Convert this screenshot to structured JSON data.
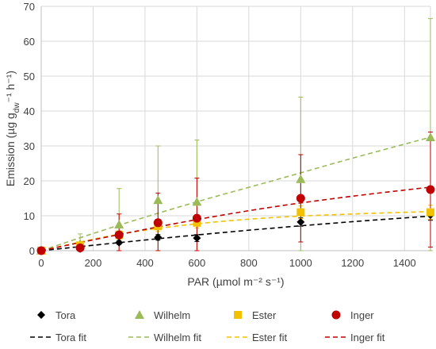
{
  "chart_data": {
    "type": "scatter",
    "xlabel": "PAR (µmol m⁻² s⁻¹)",
    "ylabel": "Emission (µg g",
    "ylabel_sub": "dw",
    "ylabel_tail": "⁻¹ h⁻¹)",
    "xlim": [
      0,
      1500
    ],
    "ylim": [
      0,
      70
    ],
    "xticks": [
      0,
      200,
      400,
      600,
      800,
      1000,
      1200,
      1400
    ],
    "yticks": [
      0,
      10,
      20,
      30,
      40,
      50,
      60,
      70
    ],
    "grid": true,
    "legend_position": "bottom",
    "x": [
      0,
      150,
      300,
      450,
      600,
      1000,
      1500
    ],
    "series": [
      {
        "name": "Tora",
        "marker": "diamond",
        "color": "#000000",
        "values": [
          0,
          0.5,
          2.3,
          3.8,
          3.6,
          8.2,
          10.2
        ],
        "err": [
          0,
          0.3,
          0.5,
          0.8,
          1.0,
          1.2,
          1.5
        ]
      },
      {
        "name": "Wilhelm",
        "marker": "triangle",
        "color": "#9BBB59",
        "values": [
          0,
          2.0,
          7.5,
          14.5,
          14.0,
          20.5,
          32.5
        ],
        "err": [
          0,
          2.8,
          10.3,
          15.5,
          17.7,
          23.5,
          34.0
        ]
      },
      {
        "name": "Ester",
        "marker": "square",
        "color": "#F2C200",
        "values": [
          0,
          1.5,
          4.5,
          7.0,
          8.0,
          11.0,
          11.0
        ],
        "err": [
          0,
          0.8,
          1.2,
          1.5,
          1.5,
          1.8,
          2.0
        ]
      },
      {
        "name": "Inger",
        "marker": "circle",
        "color": "#C00000",
        "values": [
          0,
          0.8,
          4.5,
          8.0,
          9.3,
          15.0,
          17.5
        ],
        "err": [
          0,
          1.0,
          6.0,
          8.5,
          11.5,
          12.5,
          16.5
        ]
      }
    ],
    "fits": [
      {
        "name": "Tora fit",
        "color": "#000000",
        "x": [
          0,
          300,
          600,
          900,
          1200,
          1500
        ],
        "values": [
          0,
          2.3,
          4.5,
          6.5,
          8.3,
          9.9
        ]
      },
      {
        "name": "Wilhelm fit",
        "color": "#9BBB59",
        "x": [
          0,
          300,
          600,
          900,
          1200,
          1500
        ],
        "values": [
          0,
          7.3,
          14.0,
          20.2,
          26.5,
          32.5
        ]
      },
      {
        "name": "Ester fit",
        "color": "#F2C200",
        "x": [
          0,
          300,
          600,
          900,
          1200,
          1500
        ],
        "values": [
          0,
          4.7,
          7.7,
          9.5,
          10.5,
          11.2
        ]
      },
      {
        "name": "Inger fit",
        "color": "#C00000",
        "x": [
          0,
          300,
          600,
          900,
          1200,
          1500
        ],
        "values": [
          0,
          4.6,
          8.9,
          12.6,
          15.6,
          18.2
        ]
      }
    ]
  }
}
